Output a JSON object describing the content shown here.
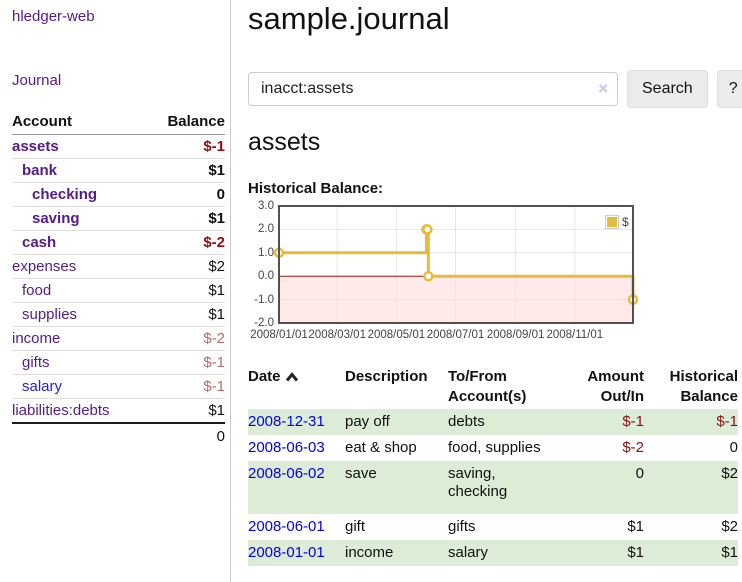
{
  "sidebar": {
    "brand": "hledger-web",
    "nav_journal": "Journal",
    "accounts": {
      "col_account": "Account",
      "col_balance": "Balance",
      "rows": [
        {
          "name": "assets",
          "balance": "$-1",
          "classes": "lvl1 bold"
        },
        {
          "name": "bank",
          "balance": "$1",
          "classes": "lvl2 bold"
        },
        {
          "name": "checking",
          "balance": "0",
          "classes": "lvl3 bold"
        },
        {
          "name": "saving",
          "balance": "$1",
          "classes": "lvl3 bold"
        },
        {
          "name": "cash",
          "balance": "$-2",
          "classes": "lvl2 bold"
        },
        {
          "name": "expenses",
          "balance": "$2",
          "classes": "lvl1"
        },
        {
          "name": "food",
          "balance": "$1",
          "classes": "lvl2"
        },
        {
          "name": "supplies",
          "balance": "$1",
          "classes": "lvl2"
        },
        {
          "name": "income",
          "balance": "$-2",
          "classes": "lvl1"
        },
        {
          "name": "gifts",
          "balance": "$-1",
          "classes": "lvl2"
        },
        {
          "name": "salary",
          "balance": "$-1",
          "classes": "lvl2 blue"
        },
        {
          "name": "liabilities:debts",
          "balance": "$1",
          "classes": "lvl1"
        }
      ],
      "total": "0"
    }
  },
  "main": {
    "title": "sample.journal",
    "search": {
      "value": "inacct:assets",
      "clear": "×",
      "button": "Search",
      "help": "?"
    },
    "heading": "assets",
    "chart_title": "Historical Balance:"
  },
  "chart_data": {
    "type": "line",
    "step": true,
    "title": "Historical Balance:",
    "series": [
      {
        "name": "$",
        "color": "#e6bc3f",
        "points": [
          [
            "2008-01-01",
            1.0
          ],
          [
            "2008-06-01",
            2.0
          ],
          [
            "2008-06-02",
            2.0
          ],
          [
            "2008-06-03",
            0.0
          ],
          [
            "2008-12-31",
            -1.0
          ]
        ]
      }
    ],
    "ylim": [
      -2.0,
      3.0
    ],
    "yticks": [
      "3.0",
      "2.0",
      "1.0",
      "0.0",
      "-1.0",
      "-2.0"
    ],
    "xticks": [
      "2008/01/01",
      "2008/03/01",
      "2008/05/01",
      "2008/07/01",
      "2008/09/01",
      "2008/11/01"
    ],
    "xrange": [
      "2008-01-01",
      "2008-12-31"
    ],
    "grid": true,
    "negative_region_color": "#ffdbdb",
    "zero_line_color": "#8f1d1d",
    "legend": {
      "label": "$",
      "position": "top-right"
    }
  },
  "register": {
    "headers": {
      "date": "Date",
      "description": "Description",
      "tofrom1": "To/From",
      "tofrom2": "Account(s)",
      "amount1": "Amount",
      "amount2": "Out/In",
      "hist1": "Historical",
      "hist2": "Balance"
    },
    "rows": [
      {
        "date": "2008-12-31",
        "description": "pay off",
        "accounts": "debts",
        "amount": "$-1",
        "balance": "$-1",
        "classes": "striped"
      },
      {
        "date": "2008-06-03",
        "description": "eat & shop",
        "accounts": "food, supplies",
        "amount": "$-2",
        "balance": "0",
        "classes": ""
      },
      {
        "date": "2008-06-02",
        "description": "save",
        "accounts": "saving,\nchecking",
        "amount": "0",
        "balance": "$2",
        "classes": "striped tall"
      },
      {
        "date": "2008-06-01",
        "description": "gift",
        "accounts": "gifts",
        "amount": "$1",
        "balance": "$2",
        "classes": ""
      },
      {
        "date": "2008-01-01",
        "description": "income",
        "accounts": "salary",
        "amount": "$1",
        "balance": "$1",
        "classes": "striped"
      }
    ]
  }
}
